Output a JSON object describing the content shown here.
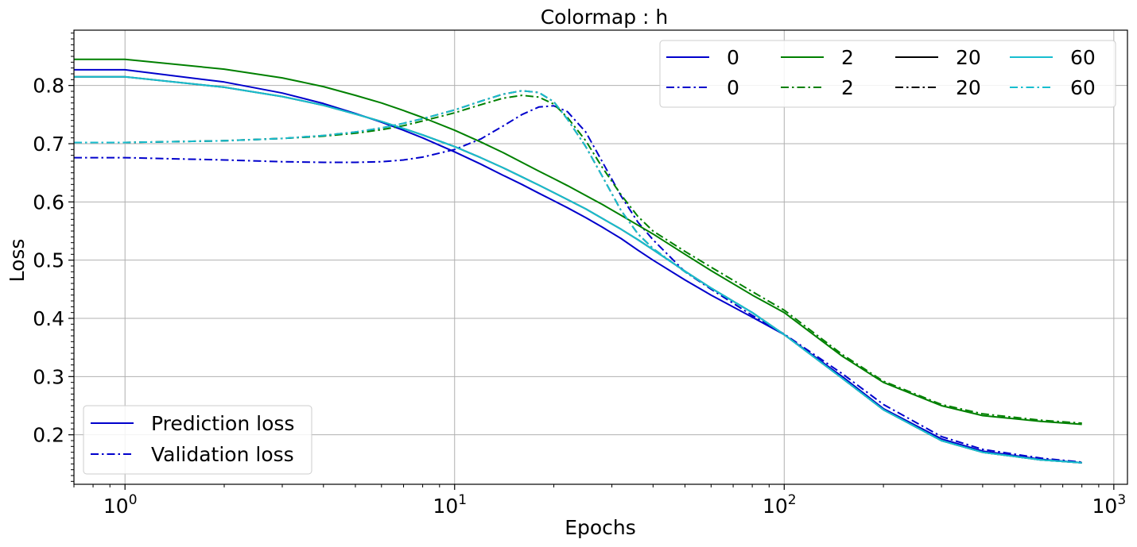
{
  "chart_data": {
    "type": "line",
    "title": "Colormap : h",
    "xlabel": "Epochs",
    "ylabel": "Loss",
    "xscale": "log",
    "xlim": [
      0.7,
      1100
    ],
    "ylim": [
      0.115,
      0.895
    ],
    "xticks": [
      {
        "value": 1,
        "base": "10",
        "exp": "0"
      },
      {
        "value": 10,
        "base": "10",
        "exp": "1"
      },
      {
        "value": 100,
        "base": "10",
        "exp": "2"
      },
      {
        "value": 1000,
        "base": "10",
        "exp": "3"
      }
    ],
    "yticks": [
      {
        "value": 0.2,
        "label": "0.2"
      },
      {
        "value": 0.3,
        "label": "0.3"
      },
      {
        "value": 0.4,
        "label": "0.4"
      },
      {
        "value": 0.5,
        "label": "0.5"
      },
      {
        "value": 0.6,
        "label": "0.6"
      },
      {
        "value": 0.7,
        "label": "0.7"
      },
      {
        "value": 0.8,
        "label": "0.8"
      }
    ],
    "grid": true,
    "legend_position": "top-right",
    "legend_columns": 4,
    "style_legend": {
      "position": "bottom-left",
      "entries": [
        {
          "label": "Prediction loss",
          "color": "#0000cc",
          "dash": "solid"
        },
        {
          "label": "Validation loss",
          "color": "#0000cc",
          "dash": "dashdot"
        }
      ]
    },
    "x": [
      0.7,
      1,
      2,
      3,
      4,
      5,
      6,
      7,
      8,
      10,
      12,
      14,
      16,
      18,
      20,
      22,
      25,
      28,
      32,
      36,
      40,
      50,
      60,
      80,
      100,
      150,
      200,
      300,
      400,
      600,
      800
    ],
    "series": [
      {
        "name": "0",
        "kind": "Prediction loss",
        "color": "#0000cc",
        "dash": "solid",
        "values": [
          0.827,
          0.827,
          0.806,
          0.787,
          0.769,
          0.752,
          0.737,
          0.723,
          0.71,
          0.686,
          0.665,
          0.646,
          0.63,
          0.615,
          0.602,
          0.59,
          0.573,
          0.557,
          0.537,
          0.517,
          0.5,
          0.466,
          0.44,
          0.402,
          0.372,
          0.3,
          0.245,
          0.193,
          0.172,
          0.158,
          0.152
        ]
      },
      {
        "name": "0",
        "kind": "Validation loss",
        "color": "#0000cc",
        "dash": "dashdot",
        "values": [
          0.676,
          0.676,
          0.672,
          0.669,
          0.668,
          0.668,
          0.669,
          0.672,
          0.677,
          0.69,
          0.708,
          0.73,
          0.75,
          0.763,
          0.765,
          0.755,
          0.72,
          0.67,
          0.61,
          0.565,
          0.535,
          0.48,
          0.45,
          0.405,
          0.373,
          0.305,
          0.252,
          0.197,
          0.175,
          0.16,
          0.153
        ]
      },
      {
        "name": "2",
        "kind": "Prediction loss",
        "color": "#008000",
        "dash": "solid",
        "values": [
          0.845,
          0.845,
          0.828,
          0.813,
          0.798,
          0.783,
          0.77,
          0.757,
          0.745,
          0.723,
          0.703,
          0.685,
          0.668,
          0.653,
          0.64,
          0.628,
          0.611,
          0.596,
          0.577,
          0.56,
          0.545,
          0.51,
          0.482,
          0.44,
          0.41,
          0.335,
          0.29,
          0.25,
          0.233,
          0.223,
          0.218
        ]
      },
      {
        "name": "2",
        "kind": "Validation loss",
        "color": "#008000",
        "dash": "dashdot",
        "values": [
          0.702,
          0.702,
          0.705,
          0.709,
          0.713,
          0.718,
          0.724,
          0.731,
          0.739,
          0.753,
          0.767,
          0.778,
          0.783,
          0.78,
          0.768,
          0.745,
          0.705,
          0.66,
          0.612,
          0.575,
          0.55,
          0.515,
          0.488,
          0.446,
          0.414,
          0.338,
          0.292,
          0.252,
          0.236,
          0.225,
          0.22
        ]
      },
      {
        "name": "20",
        "kind": "Prediction loss",
        "color": "#000000",
        "dash": "solid",
        "values": [
          0.815,
          0.815,
          0.797,
          0.781,
          0.766,
          0.751,
          0.738,
          0.726,
          0.715,
          0.695,
          0.676,
          0.659,
          0.643,
          0.629,
          0.616,
          0.604,
          0.588,
          0.572,
          0.553,
          0.535,
          0.518,
          0.481,
          0.452,
          0.41,
          0.372,
          0.297,
          0.243,
          0.19,
          0.17,
          0.157,
          0.152
        ]
      },
      {
        "name": "20",
        "kind": "Validation loss",
        "color": "#000000",
        "dash": "dashdot",
        "values": [
          0.702,
          0.702,
          0.705,
          0.709,
          0.714,
          0.72,
          0.727,
          0.735,
          0.743,
          0.758,
          0.773,
          0.785,
          0.791,
          0.788,
          0.772,
          0.742,
          0.695,
          0.645,
          0.585,
          0.545,
          0.52,
          0.48,
          0.452,
          0.41,
          0.372,
          0.297,
          0.243,
          0.19,
          0.17,
          0.157,
          0.152
        ]
      },
      {
        "name": "60",
        "kind": "Prediction loss",
        "color": "#17becf",
        "dash": "solid",
        "values": [
          0.815,
          0.815,
          0.797,
          0.781,
          0.766,
          0.751,
          0.738,
          0.726,
          0.715,
          0.695,
          0.676,
          0.659,
          0.643,
          0.629,
          0.616,
          0.604,
          0.588,
          0.572,
          0.553,
          0.535,
          0.518,
          0.481,
          0.452,
          0.41,
          0.372,
          0.297,
          0.243,
          0.19,
          0.17,
          0.157,
          0.152
        ]
      },
      {
        "name": "60",
        "kind": "Validation loss",
        "color": "#17becf",
        "dash": "dashdot",
        "values": [
          0.702,
          0.702,
          0.705,
          0.709,
          0.714,
          0.72,
          0.727,
          0.735,
          0.743,
          0.758,
          0.773,
          0.785,
          0.791,
          0.788,
          0.772,
          0.742,
          0.695,
          0.645,
          0.585,
          0.545,
          0.52,
          0.48,
          0.452,
          0.41,
          0.372,
          0.297,
          0.243,
          0.19,
          0.17,
          0.157,
          0.152
        ]
      }
    ]
  }
}
